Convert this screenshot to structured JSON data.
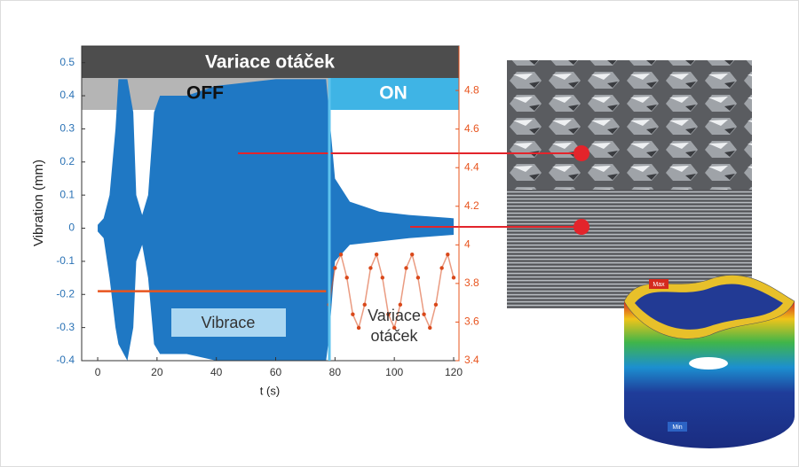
{
  "chart_data": {
    "type": "line",
    "title": "Variace otáček",
    "phase_labels": [
      "OFF",
      "ON"
    ],
    "vibration_label": "Vibrace",
    "speed_label": [
      "Variace",
      "otáček"
    ],
    "xlabel": "t (s)",
    "ylabel": "Vibration (mm)",
    "xlim": [
      -5.4,
      121.8
    ],
    "xticks": [
      0,
      20,
      40,
      60,
      80,
      100,
      120
    ],
    "ylim": [
      -0.4,
      0.55
    ],
    "yticks": [
      -0.4,
      -0.3,
      -0.2,
      -0.1,
      0,
      0.1,
      0.2,
      0.3,
      0.4,
      0.5
    ],
    "y2lim": [
      3.4,
      5.03
    ],
    "y2ticks": [
      3.4,
      3.6,
      3.8,
      4,
      4.2,
      4.4,
      4.6,
      4.8
    ],
    "grid": false,
    "series": [
      {
        "kind": "envelope",
        "color": "#1f78c4",
        "x": [
          0,
          2,
          4,
          6,
          7,
          10,
          12,
          13,
          15,
          17,
          19,
          21,
          30,
          40,
          60,
          77,
          78,
          80,
          85,
          95,
          105,
          120
        ],
        "upper": [
          0.01,
          0.03,
          0.1,
          0.3,
          0.45,
          0.45,
          0.35,
          0.1,
          0.04,
          0.1,
          0.35,
          0.4,
          0.4,
          0.43,
          0.45,
          0.45,
          0.35,
          0.15,
          0.08,
          0.05,
          0.04,
          0.03
        ],
        "lower": [
          -0.01,
          -0.03,
          -0.15,
          -0.3,
          -0.35,
          -0.4,
          -0.3,
          -0.1,
          -0.05,
          -0.15,
          -0.35,
          -0.38,
          -0.38,
          -0.4,
          -0.4,
          -0.4,
          -0.33,
          -0.1,
          -0.05,
          -0.04,
          -0.03,
          -0.02
        ]
      },
      {
        "kind": "line",
        "axis": "y2",
        "color": "#e8541e",
        "x": [
          0,
          77
        ],
        "values": [
          3.76,
          3.76
        ]
      },
      {
        "kind": "dots",
        "axis": "y2",
        "color": "#d9481a",
        "x": [
          78,
          80,
          82,
          84,
          86,
          88,
          90,
          92,
          94,
          96,
          98,
          100,
          102,
          104,
          106,
          108,
          110,
          112,
          114,
          116,
          118,
          120
        ],
        "values": [
          3.69,
          3.88,
          3.95,
          3.83,
          3.64,
          3.57,
          3.69,
          3.88,
          3.95,
          3.83,
          3.64,
          3.57,
          3.69,
          3.88,
          3.95,
          3.83,
          3.64,
          3.57,
          3.69,
          3.88,
          3.95,
          3.83
        ]
      }
    ]
  },
  "model_labels": [
    "Max",
    "Min"
  ]
}
